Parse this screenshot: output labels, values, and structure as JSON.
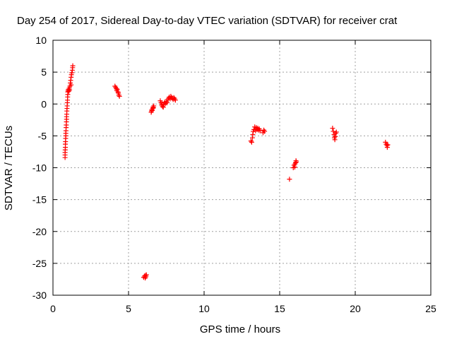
{
  "chart_data": {
    "type": "scatter",
    "title": "Day 254 of 2017, Sidereal Day-to-day VTEC variation (SDTVAR) for receiver crat",
    "xlabel": "GPS time / hours",
    "ylabel": "SDTVAR / TECUs",
    "xlim": [
      0,
      25
    ],
    "ylim": [
      -30,
      10
    ],
    "xticks": [
      0,
      5,
      10,
      15,
      20,
      25
    ],
    "yticks": [
      -30,
      -25,
      -20,
      -15,
      -10,
      -5,
      0,
      5,
      10
    ],
    "grid": true,
    "marker": "+",
    "color": "#ff0000",
    "series": [
      {
        "name": "SDTVAR",
        "points": [
          [
            0.8,
            -8.4
          ],
          [
            0.8,
            -8.0
          ],
          [
            0.8,
            -7.6
          ],
          [
            0.81,
            -7.2
          ],
          [
            0.82,
            -6.8
          ],
          [
            0.82,
            -6.3
          ],
          [
            0.83,
            -5.9
          ],
          [
            0.84,
            -5.4
          ],
          [
            0.85,
            -5.0
          ],
          [
            0.85,
            -4.6
          ],
          [
            0.86,
            -4.2
          ],
          [
            0.87,
            -3.7
          ],
          [
            0.88,
            -3.3
          ],
          [
            0.89,
            -2.8
          ],
          [
            0.9,
            -2.4
          ],
          [
            0.9,
            -2.0
          ],
          [
            0.91,
            -1.6
          ],
          [
            0.92,
            -1.1
          ],
          [
            0.93,
            -0.7
          ],
          [
            0.94,
            -0.3
          ],
          [
            0.95,
            0.2
          ],
          [
            0.96,
            0.6
          ],
          [
            0.97,
            1.1
          ],
          [
            0.98,
            1.5
          ],
          [
            0.98,
            1.9
          ],
          [
            1.0,
            2.1
          ],
          [
            1.02,
            2.3
          ],
          [
            1.05,
            2.0
          ],
          [
            1.08,
            2.5
          ],
          [
            1.1,
            2.2
          ],
          [
            1.12,
            2.8
          ],
          [
            1.15,
            3.3
          ],
          [
            1.17,
            3.7
          ],
          [
            1.2,
            4.2
          ],
          [
            1.2,
            3.0
          ],
          [
            1.22,
            4.6
          ],
          [
            1.25,
            4.9
          ],
          [
            1.28,
            5.3
          ],
          [
            1.3,
            5.7
          ],
          [
            1.31,
            6.0
          ],
          [
            4.1,
            2.8
          ],
          [
            4.15,
            2.6
          ],
          [
            4.2,
            2.4
          ],
          [
            4.22,
            2.1
          ],
          [
            4.25,
            2.3
          ],
          [
            4.3,
            1.9
          ],
          [
            4.33,
            1.7
          ],
          [
            4.36,
            1.4
          ],
          [
            4.4,
            1.2
          ],
          [
            6.0,
            -27.2
          ],
          [
            6.05,
            -27.0
          ],
          [
            6.1,
            -27.3
          ],
          [
            6.12,
            -26.9
          ],
          [
            6.15,
            -27.1
          ],
          [
            6.18,
            -26.8
          ],
          [
            6.5,
            -1.3
          ],
          [
            6.52,
            -1.1
          ],
          [
            6.55,
            -0.9
          ],
          [
            6.57,
            -1.0
          ],
          [
            6.6,
            -0.7
          ],
          [
            6.62,
            -0.5
          ],
          [
            6.65,
            -0.6
          ],
          [
            6.67,
            -0.3
          ],
          [
            7.1,
            0.5
          ],
          [
            7.15,
            0.2
          ],
          [
            7.2,
            -0.2
          ],
          [
            7.22,
            0.0
          ],
          [
            7.25,
            -0.4
          ],
          [
            7.3,
            -0.5
          ],
          [
            7.35,
            -0.1
          ],
          [
            7.4,
            0.3
          ],
          [
            7.45,
            0.1
          ],
          [
            7.5,
            0.4
          ],
          [
            7.55,
            0.2
          ],
          [
            7.6,
            0.7
          ],
          [
            7.65,
            0.9
          ],
          [
            7.7,
            1.1
          ],
          [
            7.75,
            0.8
          ],
          [
            7.8,
            1.2
          ],
          [
            7.85,
            1.0
          ],
          [
            7.9,
            0.9
          ],
          [
            7.95,
            0.7
          ],
          [
            8.0,
            1.0
          ],
          [
            8.05,
            0.8
          ],
          [
            8.1,
            0.6
          ],
          [
            13.1,
            -5.8
          ],
          [
            13.15,
            -6.0
          ],
          [
            13.2,
            -5.3
          ],
          [
            13.22,
            -4.8
          ],
          [
            13.25,
            -4.3
          ],
          [
            13.3,
            -4.0
          ],
          [
            13.35,
            -3.6
          ],
          [
            13.4,
            -4.2
          ],
          [
            13.45,
            -3.7
          ],
          [
            13.5,
            -4.0
          ],
          [
            13.55,
            -3.8
          ],
          [
            13.6,
            -4.1
          ],
          [
            13.65,
            -3.9
          ],
          [
            13.7,
            -4.2
          ],
          [
            13.9,
            -4.5
          ],
          [
            13.95,
            -4.1
          ],
          [
            14.0,
            -4.3
          ],
          [
            15.65,
            -11.8
          ],
          [
            15.9,
            -10.0
          ],
          [
            15.95,
            -9.6
          ],
          [
            16.0,
            -9.9
          ],
          [
            16.02,
            -9.4
          ],
          [
            16.05,
            -9.2
          ],
          [
            16.08,
            -8.9
          ],
          [
            16.1,
            -9.1
          ],
          [
            18.5,
            -3.8
          ],
          [
            18.55,
            -4.3
          ],
          [
            18.6,
            -4.8
          ],
          [
            18.62,
            -5.3
          ],
          [
            18.65,
            -5.6
          ],
          [
            18.68,
            -5.1
          ],
          [
            18.7,
            -4.6
          ],
          [
            18.75,
            -4.4
          ],
          [
            22.0,
            -6.0
          ],
          [
            22.05,
            -6.3
          ],
          [
            22.1,
            -6.5
          ],
          [
            22.12,
            -6.8
          ],
          [
            22.15,
            -6.4
          ]
        ]
      }
    ]
  }
}
